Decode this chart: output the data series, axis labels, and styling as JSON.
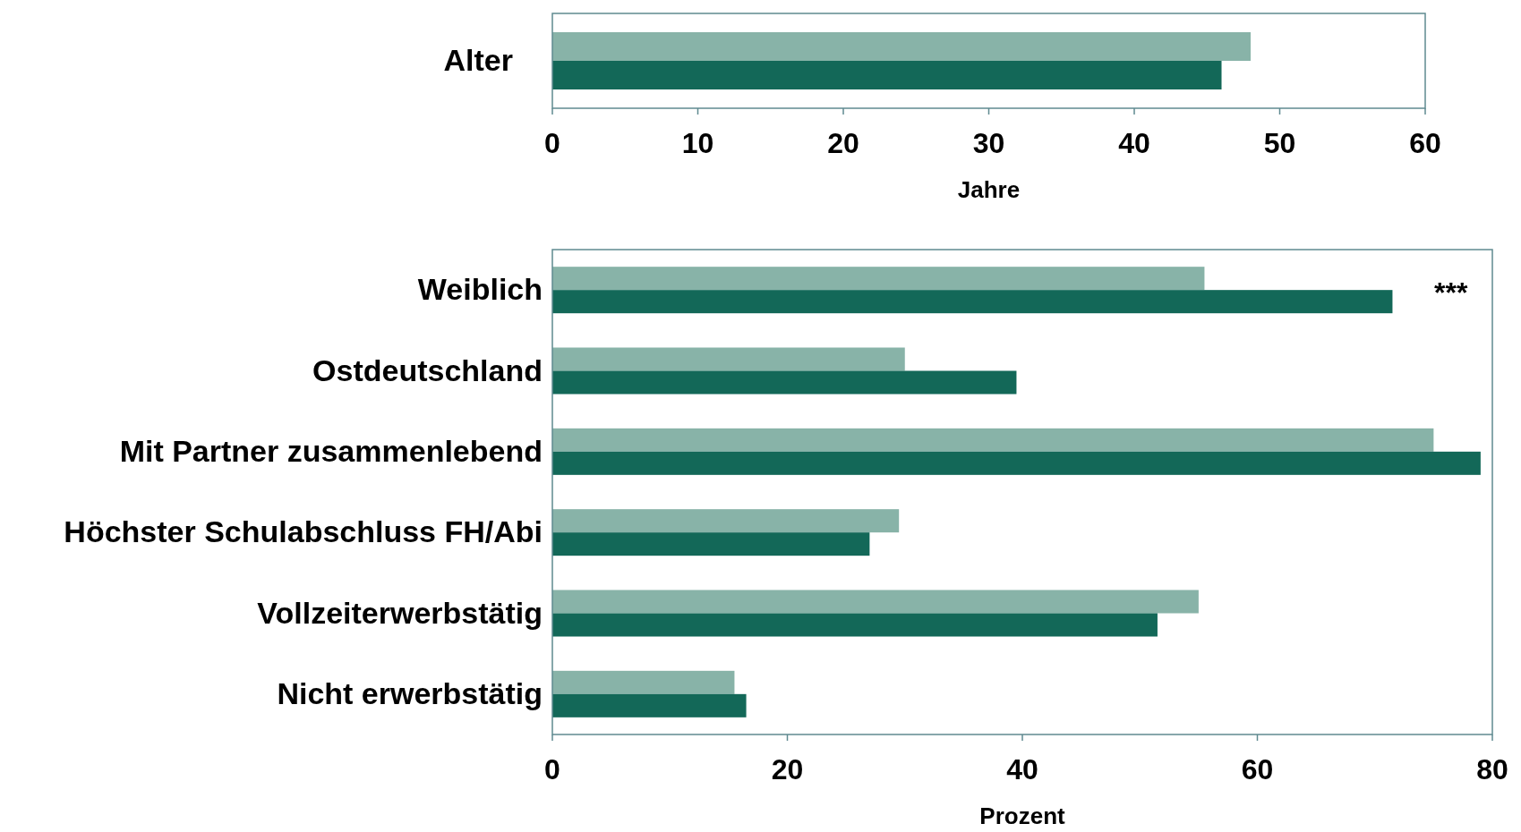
{
  "chart_data": [
    {
      "type": "bar",
      "orientation": "horizontal",
      "categories": [
        "Alter"
      ],
      "xlabel": "Jahre",
      "xlim": [
        0,
        60
      ],
      "xticks": [
        0,
        10,
        20,
        30,
        40,
        50,
        60
      ],
      "grid": false,
      "series": [
        {
          "color": "#88b3a8",
          "values": [
            48
          ]
        },
        {
          "color": "#136858",
          "values": [
            46
          ]
        }
      ]
    },
    {
      "type": "bar",
      "orientation": "horizontal",
      "categories": [
        "Weiblich",
        "Ostdeutschland",
        "Mit Partner zusammenlebend",
        "Höchster Schulabschluss FH/Abi",
        "Vollzeiterwerbstätig",
        "Nicht erwerbstätig"
      ],
      "xlabel": "Prozent",
      "xlim": [
        0,
        80
      ],
      "xticks": [
        0,
        20,
        40,
        60,
        80
      ],
      "grid": false,
      "annotations": [
        "***"
      ],
      "series": [
        {
          "color": "#88b3a8",
          "values": [
            55.5,
            30,
            75,
            29.5,
            55,
            15.5
          ]
        },
        {
          "color": "#136858",
          "values": [
            71.5,
            39.5,
            79,
            27,
            51.5,
            16.5
          ]
        }
      ]
    }
  ]
}
